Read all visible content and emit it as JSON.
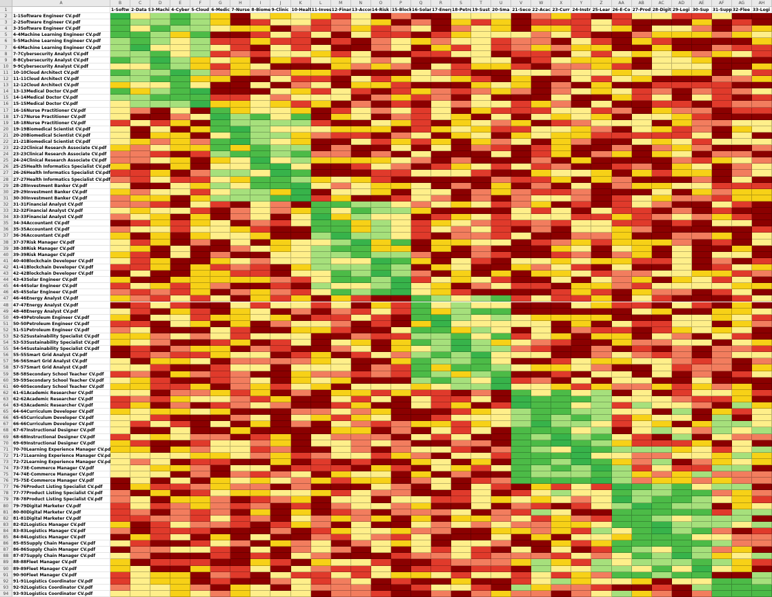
{
  "columns": [
    "A",
    "B",
    "C",
    "D",
    "E",
    "F",
    "G",
    "H",
    "I",
    "J",
    "K",
    "L",
    "M",
    "N",
    "O",
    "P",
    "Q",
    "R",
    "S",
    "T",
    "U",
    "V",
    "W",
    "X",
    "Y",
    "Z",
    "AA",
    "AB",
    "AC",
    "AD",
    "AE",
    "AF",
    "AG",
    "AH"
  ],
  "header_labels": [
    "1-Softw",
    "2-Data S",
    "3-Machi",
    "4-Cyber",
    "5-Cloud",
    "6-Medic",
    "7-Nurse",
    "8-Biome",
    "9-Clinic",
    "10-Healt",
    "11-Inves",
    "12-Financ",
    "13-Accou",
    "14-Risk M",
    "15-Block",
    "16-Solar",
    "17-Energ",
    "18-Petro",
    "19-Sust",
    "20-Sma",
    "21-Seco",
    "22-Acac",
    "23-Curr",
    "24-Instr",
    "25-Lear",
    "26-E-Co",
    "27-Prod",
    "28-Digit",
    "29-Logi",
    "30-Sup",
    "31-Supp",
    "32-Flee",
    "33-Logi"
  ],
  "rows": [
    "1-1Software Engineer CV.pdf",
    "2-2Software Engineer CV.pdf",
    "3-3Software Engineer CV.pdf",
    "4-4Machine Learning Engineer CV.pdf",
    "5-5Machine Learning Engineer CV.pdf",
    "6-6Machine Learning Engineer CV.pdf",
    "7-7Cybersecurity Analyst CV.pdf",
    "8-8Cybersecurity Analyst CV.pdf",
    "9-9Cybersecurity Analyst CV.pdf",
    "10-10Cloud Architect CV.pdf",
    "11-11Cloud Architect CV.pdf",
    "12-12Cloud Architect CV.pdf",
    "13-13Medical Doctor CV.pdf",
    "14-14Medical Doctor CV.pdf",
    "15-15Medical Doctor CV.pdf",
    "16-16Nurse Practitioner CV.pdf",
    "17-17Nurse Practitioner CV.pdf",
    "18-18Nurse Practitioner CV.pdf",
    "19-19Biomedical Scientist CV.pdf",
    "20-20Biomedical Scientist CV.pdf",
    "21-21Biomedical Scientist CV.pdf",
    "22-22Clinical Research Associate CV.pdf",
    "23-23Clinical Research Associate CV.pdf",
    "24-24Clinical Research Associate CV.pdf",
    "25-25Health Informatics Specialist CV.pdf",
    "26-26Health Informatics Specialist CV.pdf",
    "27-27Health Informatics Specialist CV.pdf",
    "28-28Investment Banker CV.pdf",
    "29-29Investment Banker CV.pdf",
    "30-30Investment Banker CV.pdf",
    "31-31Financial Analyst CV.pdf",
    "32-32Financial Analyst CV.pdf",
    "33-33Financial Analyst CV.pdf",
    "34-34Accountant CV.pdf",
    "35-35Accountant CV.pdf",
    "36-36Accountant CV.pdf",
    "37-37Risk Manager CV.pdf",
    "38-38Risk Manager CV.pdf",
    "39-39Risk Manager CV.pdf",
    "40-40Blockchain Developer CV.pdf",
    "41-41Blockchain Developer CV.pdf",
    "42-42Blockchain Developer CV.pdf",
    "43-43Solar Engineer CV.pdf",
    "44-44Solar Engineer CV.pdf",
    "45-45Solar Engineer CV.pdf",
    "46-46Energy Analyst CV.pdf",
    "47-47Energy Analyst CV.pdf",
    "48-48Energy Analyst CV.pdf",
    "49-49Petroleum Engineer CV.pdf",
    "50-50Petroleum Engineer CV.pdf",
    "51-51Petroleum Engineer CV.pdf",
    "52-52Sustainability Specialist CV.pdf",
    "53-53Sustainability Specialist CV.pdf",
    "54-54Sustainability Specialist CV.pdf",
    "55-55Smart Grid Analyst CV.pdf",
    "56-56Smart Grid Analyst CV.pdf",
    "57-57Smart Grid Analyst CV.pdf",
    "58-58Secondary School Teacher CV.pdf",
    "59-59Secondary School Teacher CV.pdf",
    "60-60Secondary School Teacher CV.pdf",
    "61-61Academic Researcher CV.pdf",
    "62-62Academic Researcher CV.pdf",
    "63-63Academic Researcher CV.pdf",
    "64-64Curriculum Developer CV.pdf",
    "65-65Curriculum Developer CV.pdf",
    "66-66Curriculum Developer CV.pdf",
    "67-67Instructional Designer CV.pdf",
    "68-68Instructional Designer CV.pdf",
    "69-69Instructional Designer CV.pdf",
    "70-70Learning Experience Manager CV.pdf",
    "71-71Learning Experience Manager CV.pdf",
    "72-72Learning Experience Manager CV.pdf",
    "73-73E-Commerce Manager CV.pdf",
    "74-74E-Commerce Manager CV.pdf",
    "75-75E-Commerce Manager CV.pdf",
    "76-76Product Listing Specialist CV.pdf",
    "77-77Product Listing Specialist CV.pdf",
    "78-78Product Listing Specialist CV.pdf",
    "79-79Digital Marketer CV.pdf",
    "80-80Digital Marketer CV.pdf",
    "81-81Digital Marketer CV.pdf",
    "82-82Logistics Manager CV.pdf",
    "83-83Logistics Manager CV.pdf",
    "84-84Logistics Manager CV.pdf",
    "85-85Supply Chain Manager CV.pdf",
    "86-86Supply Chain Manager CV.pdf",
    "87-87Supply Chain Manager CV.pdf",
    "88-88Fleet Manager CV.pdf",
    "89-89Fleet Manager CV.pdf",
    "90-90Fleet Manager CV.pdf",
    "91-91Logistics Coordinator CV.pdf",
    "92-92Logistics Coordinator CV.pdf",
    "93-93Logistics Coordinator CV.pdf"
  ],
  "color_scale": {
    "dark_red": "#8b0000",
    "red": "#e03a2b",
    "salmon": "#f27d5e",
    "yellow": "#f7d117",
    "light_yellow": "#ffef8a",
    "light_green": "#a6e07c",
    "green": "#4cbb47",
    "bright_green": "#37b34a"
  }
}
